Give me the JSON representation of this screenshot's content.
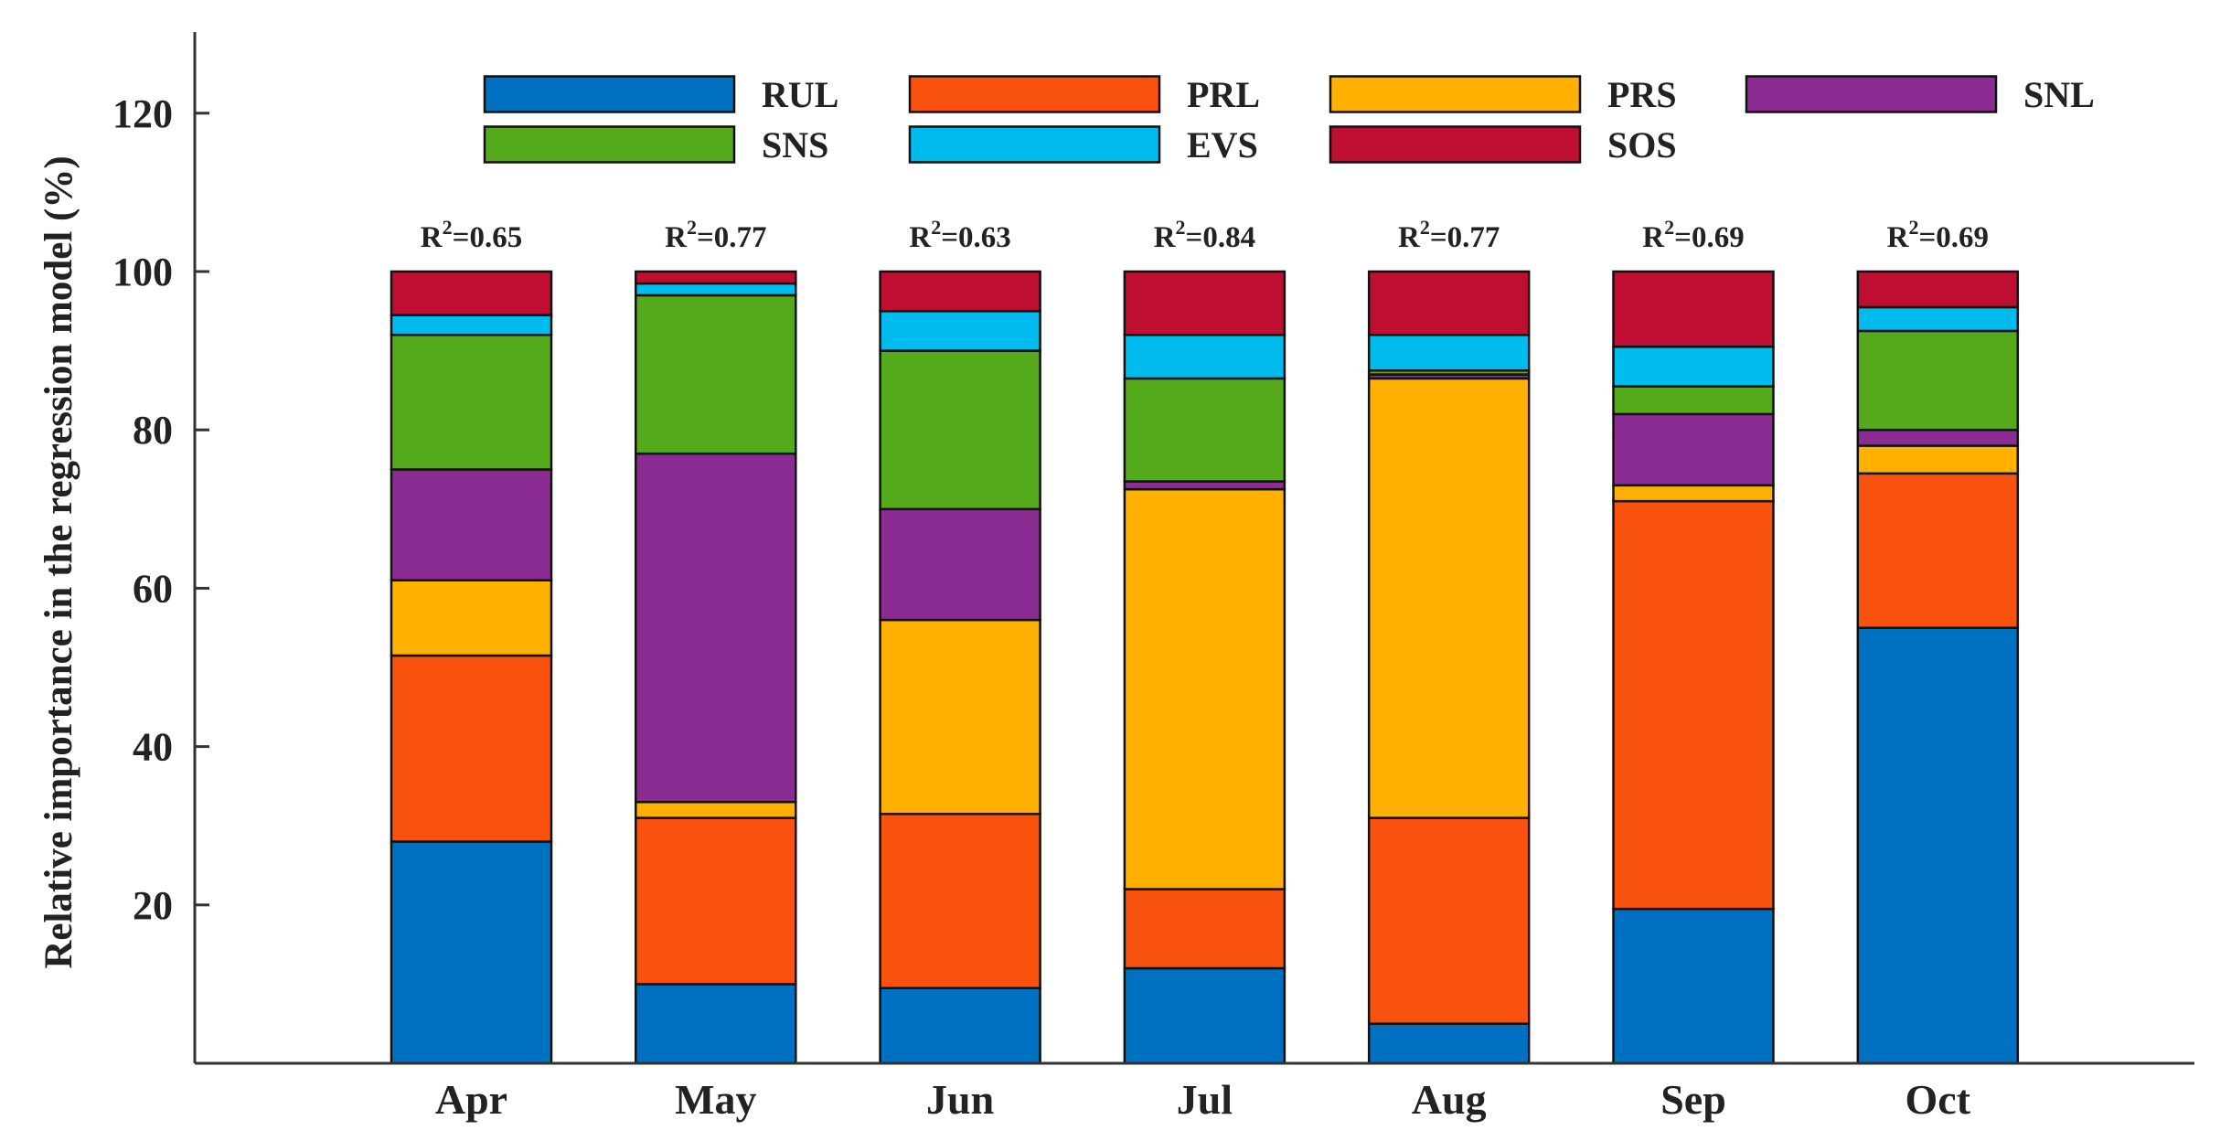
{
  "chart_data": {
    "type": "bar",
    "stacked": true,
    "title": "",
    "xlabel": "",
    "ylabel": "Relative importance in the regression model (%)",
    "ylim": [
      0,
      130
    ],
    "yticks": [
      20,
      40,
      60,
      80,
      100,
      120
    ],
    "grid": false,
    "legend_position": "top",
    "categories": [
      "Apr",
      "May",
      "Jun",
      "Jul",
      "Aug",
      "Sep",
      "Oct"
    ],
    "r2_prefix": "R",
    "r2_sup": "2",
    "r2_values": [
      "=0.65",
      "=0.77",
      "=0.63",
      "=0.84",
      "=0.77",
      "=0.69",
      "=0.69"
    ],
    "series": [
      {
        "name": "RUL",
        "color": "#0070C0",
        "values": [
          28.0,
          10.0,
          9.5,
          12.0,
          5.0,
          19.5,
          55.0
        ]
      },
      {
        "name": "PRL",
        "color": "#F8520E",
        "values": [
          23.5,
          21.0,
          22.0,
          10.0,
          26.0,
          51.5,
          19.5
        ]
      },
      {
        "name": "PRS",
        "color": "#FFB000",
        "values": [
          9.5,
          2.0,
          24.5,
          50.5,
          55.5,
          2.0,
          3.5
        ]
      },
      {
        "name": "SNL",
        "color": "#8B2C92",
        "values": [
          14.0,
          44.0,
          14.0,
          1.0,
          0.5,
          9.0,
          2.0
        ]
      },
      {
        "name": "SNS",
        "color": "#55AA1B",
        "values": [
          17.0,
          20.0,
          20.0,
          13.0,
          0.5,
          3.5,
          12.5
        ]
      },
      {
        "name": "EVS",
        "color": "#00BBEE",
        "values": [
          2.5,
          1.5,
          5.0,
          5.5,
          4.5,
          5.0,
          3.0
        ]
      },
      {
        "name": "SOS",
        "color": "#BE0F32",
        "values": [
          5.5,
          1.5,
          5.0,
          8.0,
          8.0,
          9.5,
          4.5
        ]
      }
    ]
  }
}
